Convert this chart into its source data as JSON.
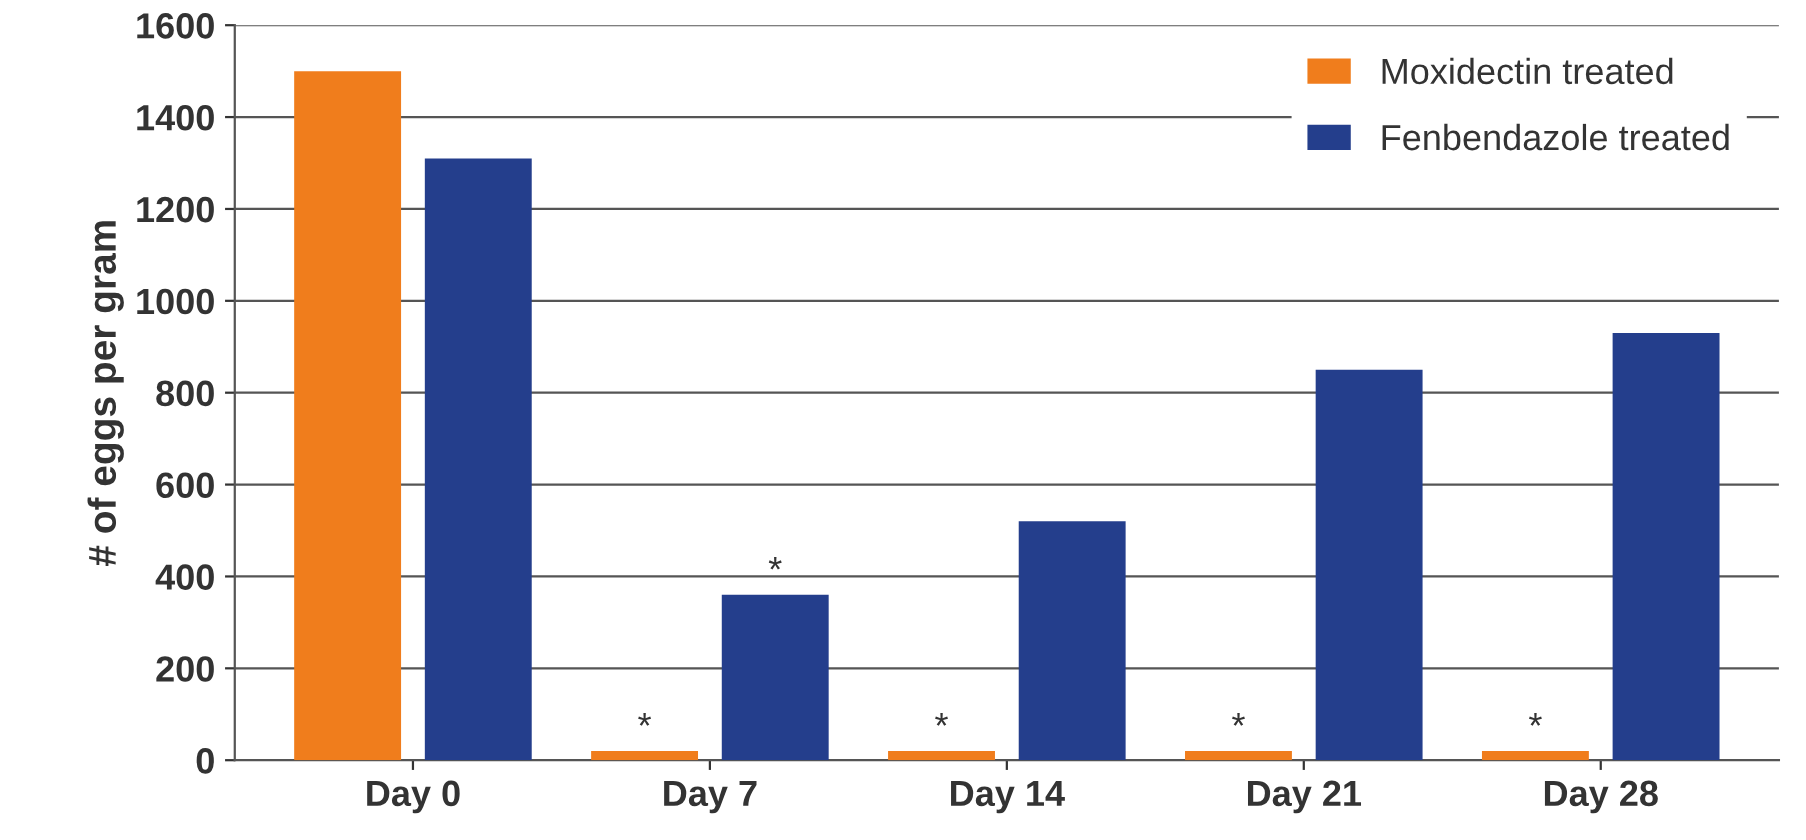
{
  "chart_data": {
    "type": "bar",
    "ylabel": "# of eggs per gram",
    "categories": [
      "Day 0",
      "Day 7",
      "Day 14",
      "Day 21",
      "Day 28"
    ],
    "series": [
      {
        "name": "Moxidectin treated",
        "color": "#f07d1c",
        "values": [
          1500,
          20,
          20,
          20,
          20
        ]
      },
      {
        "name": "Fenbendazole treated",
        "color": "#243e8c",
        "values": [
          1310,
          360,
          520,
          850,
          930
        ]
      }
    ],
    "ylim": [
      0,
      1600
    ],
    "yticks": [
      0,
      200,
      400,
      600,
      800,
      1000,
      1200,
      1400,
      1600
    ],
    "grid": "y",
    "legend": "top right",
    "annotations": [
      "*",
      "*",
      "*",
      "*",
      "*"
    ]
  }
}
